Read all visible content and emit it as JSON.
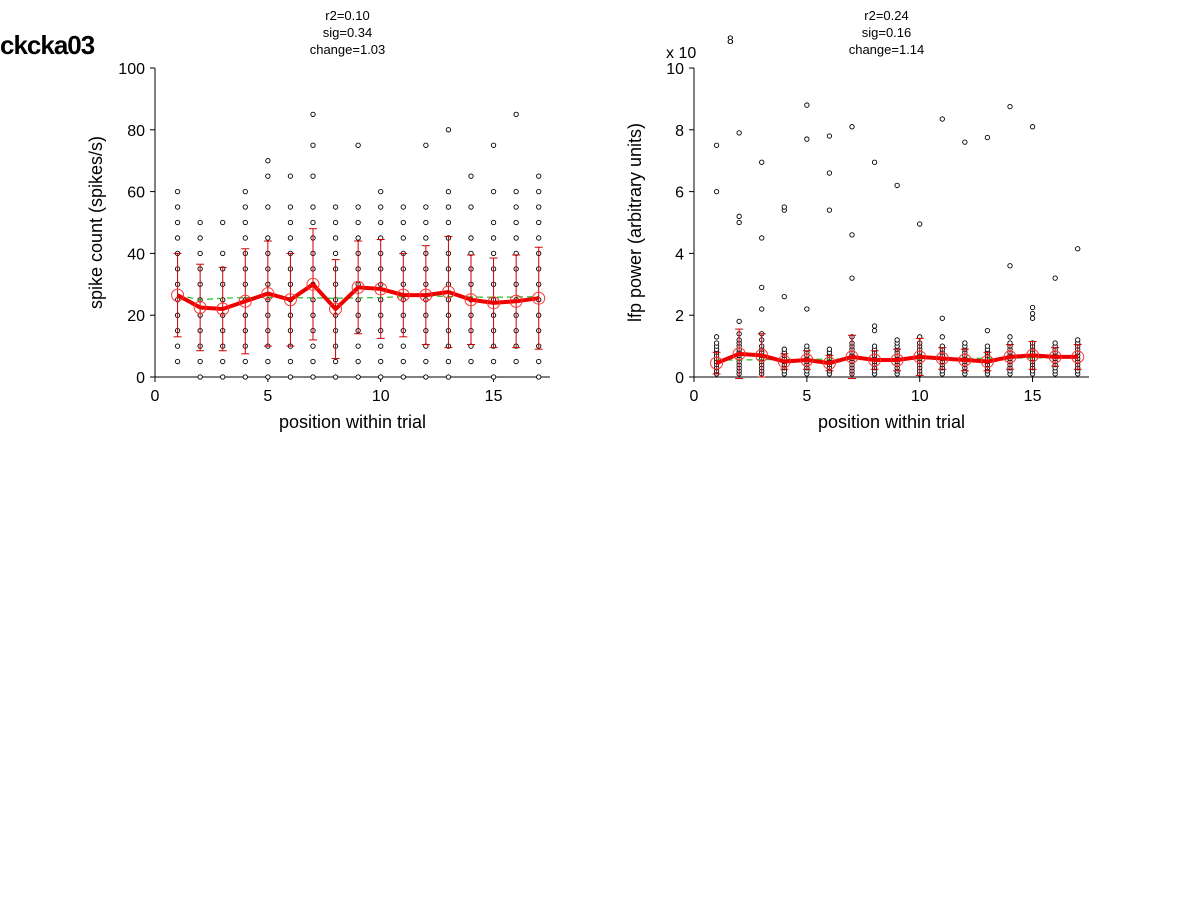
{
  "figure": {
    "title": "ckcka03"
  },
  "chart_data": [
    {
      "type": "scatter",
      "stats": [
        "r2=0.10",
        "sig=0.34",
        "change=1.03"
      ],
      "xlabel": "position within trial",
      "ylabel": "spike count (spikes/s)",
      "xlim": [
        0,
        17.5
      ],
      "ylim": [
        0,
        100
      ],
      "xticks": [
        0,
        5,
        10,
        15
      ],
      "yticks": [
        0,
        20,
        40,
        60,
        80,
        100
      ],
      "exponent_label": "",
      "x": [
        1,
        2,
        3,
        4,
        5,
        6,
        7,
        8,
        9,
        10,
        11,
        12,
        13,
        14,
        15,
        16,
        17
      ],
      "raw_points": [
        [
          5,
          10,
          15,
          20,
          25,
          30,
          35,
          40,
          45,
          50,
          55,
          60
        ],
        [
          0,
          5,
          10,
          15,
          20,
          25,
          30,
          35,
          40,
          45,
          50
        ],
        [
          0,
          5,
          10,
          15,
          20,
          25,
          30,
          35,
          40,
          50
        ],
        [
          0,
          5,
          10,
          15,
          20,
          25,
          30,
          35,
          40,
          45,
          50,
          55,
          60
        ],
        [
          0,
          5,
          10,
          15,
          20,
          25,
          30,
          35,
          40,
          45,
          55,
          65,
          70
        ],
        [
          0,
          5,
          10,
          15,
          20,
          25,
          30,
          35,
          40,
          45,
          50,
          55,
          65
        ],
        [
          0,
          5,
          10,
          15,
          20,
          25,
          30,
          35,
          40,
          45,
          50,
          55,
          65,
          75,
          85
        ],
        [
          0,
          5,
          10,
          15,
          20,
          25,
          30,
          35,
          40,
          45,
          50,
          55
        ],
        [
          0,
          5,
          10,
          15,
          20,
          25,
          30,
          35,
          40,
          45,
          50,
          55,
          75
        ],
        [
          0,
          5,
          10,
          15,
          20,
          25,
          30,
          35,
          40,
          45,
          50,
          55,
          60
        ],
        [
          0,
          5,
          10,
          15,
          20,
          25,
          30,
          35,
          40,
          45,
          50,
          55
        ],
        [
          0,
          5,
          10,
          15,
          20,
          25,
          30,
          35,
          40,
          45,
          50,
          55,
          75
        ],
        [
          0,
          5,
          10,
          15,
          20,
          25,
          30,
          35,
          40,
          45,
          50,
          55,
          60,
          80
        ],
        [
          5,
          10,
          15,
          20,
          25,
          30,
          35,
          40,
          45,
          55,
          65
        ],
        [
          0,
          5,
          10,
          15,
          20,
          25,
          30,
          35,
          40,
          45,
          50,
          60,
          75
        ],
        [
          5,
          10,
          15,
          20,
          25,
          30,
          35,
          40,
          45,
          50,
          55,
          60,
          85
        ],
        [
          0,
          5,
          10,
          15,
          20,
          25,
          30,
          35,
          40,
          45,
          50,
          55,
          60,
          65
        ]
      ],
      "mean": [
        26.5,
        22.5,
        22,
        24.5,
        27,
        25,
        30,
        22,
        29,
        28.5,
        26.5,
        26.5,
        27.5,
        25,
        24,
        24.5,
        25.5
      ],
      "error": [
        13.5,
        14,
        13.5,
        17,
        17,
        15,
        18,
        16,
        15,
        16,
        13.5,
        16,
        18,
        14.5,
        14.5,
        15,
        16.5
      ],
      "fit": [
        26.5,
        25,
        25.5,
        25.7,
        25.8,
        25.7,
        25.6,
        25.5,
        25.6,
        25.7,
        26,
        26.2,
        26.1,
        25.9,
        25.8,
        25.9,
        26
      ],
      "series": [
        {
          "name": "",
          "color": "#ff0000",
          "role": "mean"
        },
        {
          "name": "",
          "color": "#00cc00",
          "role": "fit"
        }
      ],
      "grid": false
    },
    {
      "type": "scatter",
      "stats": [
        "r2=0.24",
        "sig=0.16",
        "change=1.14"
      ],
      "xlabel": "position within trial",
      "ylabel": "lfp power (arbitrary units)",
      "xlim": [
        0,
        17.5
      ],
      "ylim": [
        0,
        10
      ],
      "xticks": [
        0,
        5,
        10,
        15
      ],
      "yticks": [
        0,
        2,
        4,
        6,
        8,
        10
      ],
      "exponent_label": "x 10",
      "exponent_value": "8",
      "x": [
        1,
        2,
        3,
        4,
        5,
        6,
        7,
        8,
        9,
        10,
        11,
        12,
        13,
        14,
        15,
        16,
        17
      ],
      "raw_points": [
        [
          0.1,
          0.2,
          0.3,
          0.4,
          0.5,
          0.6,
          0.7,
          0.8,
          0.9,
          1.0,
          1.1,
          1.3,
          6.0,
          7.5
        ],
        [
          0.1,
          0.2,
          0.3,
          0.4,
          0.5,
          0.6,
          0.7,
          0.8,
          0.9,
          1.0,
          1.1,
          1.2,
          1.4,
          1.8,
          5.0,
          5.2,
          7.9
        ],
        [
          0.1,
          0.2,
          0.3,
          0.4,
          0.5,
          0.6,
          0.7,
          0.8,
          0.9,
          1.0,
          1.2,
          1.4,
          2.2,
          2.9,
          4.5,
          6.95
        ],
        [
          0.1,
          0.2,
          0.3,
          0.4,
          0.5,
          0.6,
          0.7,
          0.8,
          0.9,
          2.6,
          5.4,
          5.5
        ],
        [
          0.1,
          0.2,
          0.3,
          0.4,
          0.5,
          0.6,
          0.7,
          0.8,
          0.9,
          1.0,
          2.2,
          7.7,
          8.8
        ],
        [
          0.1,
          0.2,
          0.3,
          0.4,
          0.5,
          0.6,
          0.7,
          0.8,
          0.9,
          5.4,
          6.6,
          7.8
        ],
        [
          0.1,
          0.2,
          0.3,
          0.4,
          0.5,
          0.6,
          0.7,
          0.8,
          0.9,
          1.0,
          1.1,
          1.3,
          3.2,
          4.6,
          8.1
        ],
        [
          0.1,
          0.2,
          0.3,
          0.4,
          0.5,
          0.6,
          0.7,
          0.8,
          0.9,
          1.0,
          1.5,
          1.65,
          6.95
        ],
        [
          0.1,
          0.2,
          0.3,
          0.4,
          0.5,
          0.6,
          0.7,
          0.8,
          0.9,
          1.0,
          1.1,
          1.2,
          6.2
        ],
        [
          0.1,
          0.2,
          0.3,
          0.4,
          0.5,
          0.6,
          0.7,
          0.8,
          0.9,
          1.0,
          1.1,
          1.3,
          4.95
        ],
        [
          0.1,
          0.2,
          0.3,
          0.4,
          0.5,
          0.6,
          0.7,
          0.8,
          0.9,
          1.0,
          1.3,
          1.9,
          8.35
        ],
        [
          0.1,
          0.2,
          0.3,
          0.4,
          0.5,
          0.6,
          0.7,
          0.8,
          0.9,
          1.0,
          1.1,
          7.6
        ],
        [
          0.1,
          0.2,
          0.3,
          0.4,
          0.5,
          0.6,
          0.7,
          0.8,
          0.9,
          1.0,
          1.5,
          7.75
        ],
        [
          0.1,
          0.2,
          0.3,
          0.4,
          0.5,
          0.6,
          0.7,
          0.8,
          0.9,
          1.0,
          1.1,
          1.3,
          3.6,
          8.75
        ],
        [
          0.1,
          0.2,
          0.3,
          0.4,
          0.5,
          0.6,
          0.7,
          0.8,
          0.9,
          1.0,
          1.1,
          1.9,
          2.05,
          2.25,
          8.1
        ],
        [
          0.1,
          0.2,
          0.3,
          0.4,
          0.5,
          0.6,
          0.7,
          0.8,
          0.9,
          1.0,
          1.1,
          3.2
        ],
        [
          0.1,
          0.2,
          0.3,
          0.4,
          0.5,
          0.6,
          0.7,
          0.8,
          0.9,
          1.0,
          1.1,
          1.2,
          4.15
        ]
      ],
      "mean": [
        0.45,
        0.75,
        0.7,
        0.5,
        0.55,
        0.45,
        0.65,
        0.55,
        0.55,
        0.65,
        0.6,
        0.55,
        0.5,
        0.65,
        0.7,
        0.65,
        0.65
      ],
      "error": [
        0.35,
        0.8,
        0.7,
        0.25,
        0.3,
        0.25,
        0.7,
        0.3,
        0.35,
        0.6,
        0.35,
        0.35,
        0.3,
        0.4,
        0.45,
        0.3,
        0.4
      ],
      "fit": [
        0.55,
        0.55,
        0.56,
        0.57,
        0.57,
        0.58,
        0.58,
        0.58,
        0.59,
        0.59,
        0.6,
        0.6,
        0.61,
        0.61,
        0.62,
        0.62,
        0.62
      ],
      "series": [
        {
          "name": "",
          "color": "#ff0000",
          "role": "mean"
        },
        {
          "name": "",
          "color": "#00cc00",
          "role": "fit"
        }
      ],
      "grid": false
    }
  ]
}
